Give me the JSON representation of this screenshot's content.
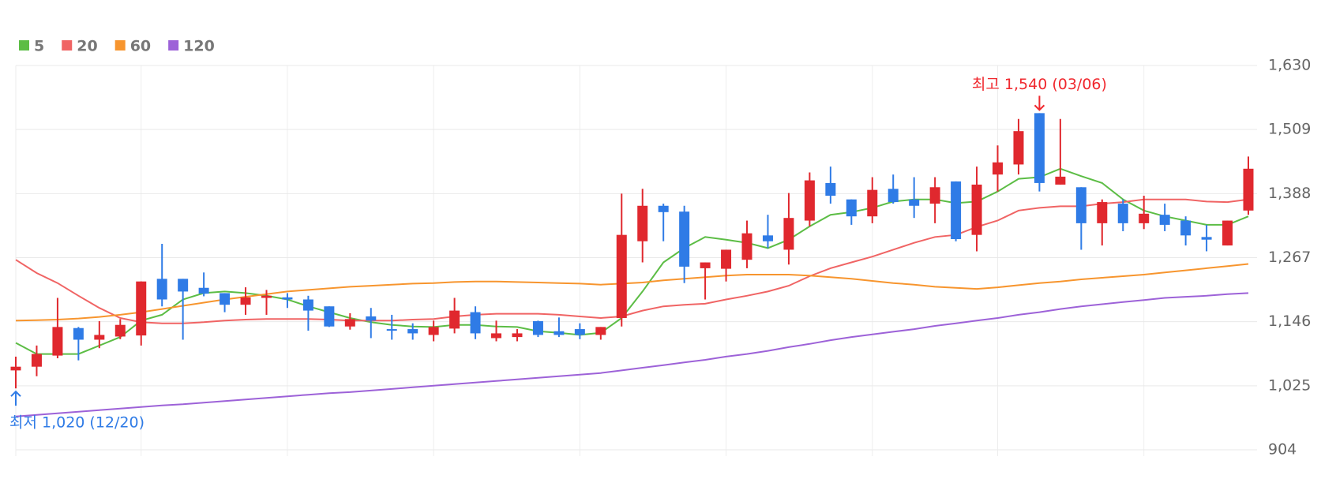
{
  "chart_data": {
    "type": "candlestick",
    "open": [
      1054,
      1061,
      1082,
      1134,
      1112,
      1118,
      1120,
      1227,
      1227,
      1210,
      1200,
      1178,
      1191,
      1192,
      1188,
      1175,
      1137,
      1156,
      1132,
      1132,
      1121,
      1133,
      1164,
      1115,
      1117,
      1147,
      1128,
      1132,
      1121,
      1153,
      1298,
      1365,
      1354,
      1247,
      1246,
      1263,
      1309,
      1282,
      1337,
      1408,
      1377,
      1345,
      1397,
      1377,
      1369,
      1411,
      1310,
      1424,
      1443,
      1540,
      1405,
      1400,
      1332,
      1369,
      1332,
      1348,
      1337,
      1306,
      1290,
      1356
    ],
    "high": [
      1080,
      1101,
      1191,
      1136,
      1147,
      1151,
      1222,
      1293,
      1227,
      1239,
      1200,
      1211,
      1206,
      1200,
      1195,
      1175,
      1162,
      1172,
      1159,
      1143,
      1148,
      1191,
      1175,
      1148,
      1132,
      1148,
      1154,
      1143,
      1136,
      1388,
      1397,
      1369,
      1365,
      1258,
      1282,
      1337,
      1348,
      1389,
      1428,
      1439,
      1377,
      1419,
      1424,
      1419,
      1419,
      1411,
      1439,
      1479,
      1529,
      1540,
      1529,
      1400,
      1377,
      1377,
      1384,
      1369,
      1345,
      1329,
      1337,
      1458
    ],
    "low": [
      1020,
      1043,
      1077,
      1073,
      1096,
      1113,
      1101,
      1175,
      1112,
      1194,
      1164,
      1159,
      1159,
      1172,
      1129,
      1136,
      1131,
      1115,
      1112,
      1112,
      1109,
      1124,
      1113,
      1109,
      1109,
      1117,
      1117,
      1113,
      1112,
      1137,
      1258,
      1298,
      1219,
      1188,
      1222,
      1247,
      1285,
      1254,
      1326,
      1369,
      1329,
      1332,
      1369,
      1342,
      1332,
      1298,
      1279,
      1392,
      1424,
      1392,
      1405,
      1282,
      1290,
      1317,
      1321,
      1317,
      1290,
      1279,
      1290,
      1348
    ],
    "close": [
      1061,
      1085,
      1136,
      1112,
      1121,
      1140,
      1222,
      1188,
      1203,
      1199,
      1178,
      1192,
      1195,
      1188,
      1167,
      1137,
      1151,
      1148,
      1129,
      1124,
      1136,
      1167,
      1124,
      1124,
      1124,
      1121,
      1121,
      1121,
      1136,
      1310,
      1365,
      1353,
      1250,
      1258,
      1282,
      1313,
      1298,
      1342,
      1413,
      1384,
      1345,
      1395,
      1372,
      1365,
      1400,
      1302,
      1405,
      1447,
      1506,
      1408,
      1420,
      1332,
      1372,
      1332,
      1350,
      1329,
      1309,
      1301,
      1337,
      1435
    ],
    "up_color": "#e0282e",
    "down_color": "#2f7be6",
    "moving_averages": [
      {
        "name": "5",
        "color": "#5cbd45",
        "values": [
          1106,
          1085,
          1085,
          1085,
          1101,
          1117,
          1148,
          1159,
          1188,
          1200,
          1203,
          1200,
          1195,
          1188,
          1175,
          1164,
          1153,
          1145,
          1140,
          1137,
          1136,
          1140,
          1140,
          1137,
          1136,
          1128,
          1125,
          1121,
          1125,
          1153,
          1203,
          1258,
          1285,
          1306,
          1301,
          1295,
          1285,
          1301,
          1326,
          1348,
          1353,
          1361,
          1373,
          1377,
          1377,
          1370,
          1373,
          1392,
          1416,
          1419,
          1435,
          1421,
          1408,
          1377,
          1356,
          1345,
          1337,
          1329,
          1329,
          1345
        ]
      },
      {
        "name": "20",
        "color": "#f06464",
        "values": [
          1263,
          1238,
          1219,
          1195,
          1172,
          1153,
          1145,
          1143,
          1143,
          1145,
          1148,
          1150,
          1151,
          1151,
          1151,
          1150,
          1148,
          1148,
          1148,
          1150,
          1151,
          1156,
          1159,
          1161,
          1161,
          1161,
          1159,
          1156,
          1153,
          1156,
          1167,
          1175,
          1178,
          1180,
          1188,
          1195,
          1203,
          1214,
          1232,
          1247,
          1258,
          1269,
          1282,
          1295,
          1306,
          1310,
          1325,
          1337,
          1356,
          1361,
          1364,
          1364,
          1369,
          1372,
          1377,
          1377,
          1377,
          1373,
          1372,
          1377
        ]
      },
      {
        "name": "60",
        "color": "#f7952e",
        "values": [
          1148,
          1149,
          1150,
          1152,
          1155,
          1159,
          1164,
          1170,
          1176,
          1182,
          1188,
          1193,
          1198,
          1203,
          1206,
          1209,
          1212,
          1214,
          1216,
          1218,
          1219,
          1221,
          1222,
          1222,
          1221,
          1220,
          1219,
          1218,
          1216,
          1218,
          1220,
          1224,
          1227,
          1230,
          1233,
          1235,
          1235,
          1235,
          1233,
          1230,
          1227,
          1223,
          1219,
          1216,
          1212,
          1210,
          1208,
          1211,
          1215,
          1219,
          1222,
          1226,
          1229,
          1232,
          1235,
          1239,
          1243,
          1247,
          1251,
          1255
        ]
      },
      {
        "name": "120",
        "color": "#9d62d8",
        "values": [
          967,
          970,
          973,
          976,
          979,
          982,
          985,
          988,
          990,
          993,
          996,
          999,
          1002,
          1005,
          1008,
          1011,
          1013,
          1016,
          1019,
          1022,
          1025,
          1028,
          1031,
          1034,
          1037,
          1040,
          1043,
          1046,
          1049,
          1054,
          1059,
          1064,
          1069,
          1074,
          1080,
          1085,
          1091,
          1098,
          1104,
          1111,
          1117,
          1122,
          1127,
          1132,
          1138,
          1143,
          1148,
          1153,
          1159,
          1164,
          1170,
          1175,
          1179,
          1183,
          1187,
          1191,
          1193,
          1195,
          1198,
          1200
        ]
      }
    ],
    "ylim": [
      904,
      1630
    ],
    "yticks": [
      904,
      {
        "value": 1025,
        "label": "1,025"
      },
      {
        "value": 1146,
        "label": "1,146"
      },
      {
        "value": 1267,
        "label": "1,267"
      },
      {
        "value": 1388,
        "label": "1,388"
      },
      {
        "value": 1509,
        "label": "1,509"
      },
      {
        "value": 1630,
        "label": "1,630"
      }
    ],
    "grid": true,
    "annotations": [
      {
        "text": "최고 1,540 (03/06)",
        "color": "#f0282e"
      },
      {
        "text": "최저 1,020 (12/20)",
        "color": "#2f7be6"
      }
    ]
  }
}
